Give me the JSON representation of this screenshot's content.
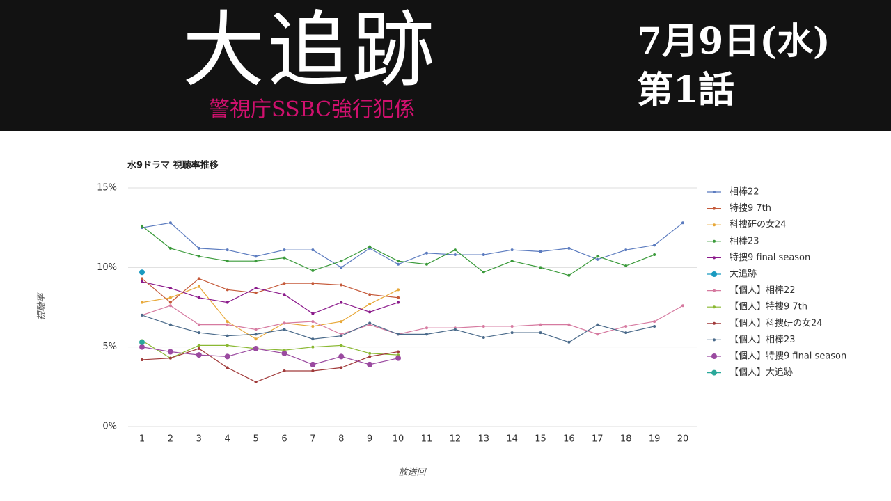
{
  "header": {
    "title": "大追跡",
    "subtitle": "警視庁SSBC強行犯係",
    "date": "7月9日(水)",
    "episode": "第1話"
  },
  "chart_data": {
    "type": "line",
    "title": "水9ドラマ 視聴率推移",
    "x_label": "放送回",
    "y_label": "視聴率",
    "x": [
      1,
      2,
      3,
      4,
      5,
      6,
      7,
      8,
      9,
      10,
      11,
      12,
      13,
      14,
      15,
      16,
      17,
      18,
      19,
      20
    ],
    "xlim": [
      1,
      20
    ],
    "xticks": [
      1,
      2,
      3,
      4,
      5,
      6,
      7,
      8,
      9,
      10,
      11,
      12,
      13,
      14,
      15,
      16,
      17,
      18,
      19,
      20
    ],
    "ylim": [
      0,
      15
    ],
    "yticks": [
      {
        "value": 0,
        "label": "0%"
      },
      {
        "value": 5,
        "label": "5%"
      },
      {
        "value": 10,
        "label": "10%"
      },
      {
        "value": 15,
        "label": "15%"
      }
    ],
    "grid": true,
    "legend": "right",
    "series": [
      {
        "name": "相棒22",
        "color": "#5b7bbf",
        "values": [
          12.5,
          12.8,
          11.2,
          11.1,
          10.7,
          11.1,
          11.1,
          10.0,
          11.2,
          10.2,
          10.9,
          10.8,
          10.8,
          11.1,
          11.0,
          11.2,
          10.5,
          11.1,
          11.4,
          12.8
        ]
      },
      {
        "name": "特捜9 7th",
        "color": "#c55a3a",
        "values": [
          9.3,
          7.8,
          9.3,
          8.6,
          8.4,
          9.0,
          9.0,
          8.9,
          8.3,
          8.1,
          null,
          null,
          null,
          null,
          null,
          null,
          null,
          null,
          null,
          null
        ]
      },
      {
        "name": "科捜研の女24",
        "color": "#e8a838",
        "values": [
          7.8,
          8.1,
          8.8,
          6.6,
          5.5,
          6.5,
          6.3,
          6.6,
          7.7,
          8.6,
          null,
          null,
          null,
          null,
          null,
          null,
          null,
          null,
          null,
          null
        ]
      },
      {
        "name": "相棒23",
        "color": "#3a9a3a",
        "values": [
          12.6,
          11.2,
          10.7,
          10.4,
          10.4,
          10.6,
          9.8,
          10.4,
          11.3,
          10.4,
          10.2,
          11.1,
          9.7,
          10.4,
          10.0,
          9.5,
          10.7,
          10.1,
          10.8,
          null
        ]
      },
      {
        "name": "特捜9 final season",
        "color": "#8b1a8b",
        "values": [
          9.1,
          8.7,
          8.1,
          7.8,
          8.7,
          8.3,
          7.1,
          7.8,
          7.2,
          7.8,
          null,
          null,
          null,
          null,
          null,
          null,
          null,
          null,
          null,
          null
        ]
      },
      {
        "name": "大追跡",
        "color": "#1a9ac0",
        "values": [
          9.7,
          null,
          null,
          null,
          null,
          null,
          null,
          null,
          null,
          null,
          null,
          null,
          null,
          null,
          null,
          null,
          null,
          null,
          null,
          null
        ]
      },
      {
        "name": "【個人】相棒22",
        "color": "#d67aa0",
        "values": [
          7.0,
          7.6,
          6.4,
          6.4,
          6.1,
          6.5,
          6.6,
          5.8,
          6.4,
          5.8,
          6.2,
          6.2,
          6.3,
          6.3,
          6.4,
          6.4,
          5.8,
          6.3,
          6.6,
          7.6
        ]
      },
      {
        "name": "【個人】特捜9 7th",
        "color": "#8ab832",
        "values": [
          5.4,
          4.3,
          5.1,
          5.1,
          4.9,
          4.8,
          5.0,
          5.1,
          4.6,
          4.5,
          null,
          null,
          null,
          null,
          null,
          null,
          null,
          null,
          null,
          null
        ]
      },
      {
        "name": "【個人】科捜研の女24",
        "color": "#a03a3a",
        "values": [
          4.2,
          4.3,
          4.9,
          3.7,
          2.8,
          3.5,
          3.5,
          3.7,
          4.4,
          4.7,
          null,
          null,
          null,
          null,
          null,
          null,
          null,
          null,
          null,
          null
        ]
      },
      {
        "name": "【個人】相棒23",
        "color": "#4a6a8a",
        "values": [
          7.0,
          6.4,
          5.9,
          5.7,
          5.8,
          6.1,
          5.5,
          5.7,
          6.5,
          5.8,
          5.8,
          6.1,
          5.6,
          5.9,
          5.9,
          5.3,
          6.4,
          5.9,
          6.3,
          null
        ]
      },
      {
        "name": "【個人】特捜9 final season",
        "color": "#9a4aa0",
        "values": [
          5.0,
          4.7,
          4.5,
          4.4,
          4.9,
          4.6,
          3.9,
          4.4,
          3.9,
          4.3,
          null,
          null,
          null,
          null,
          null,
          null,
          null,
          null,
          null,
          null
        ]
      },
      {
        "name": "【個人】大追跡",
        "color": "#2aa89a",
        "values": [
          5.3,
          null,
          null,
          null,
          null,
          null,
          null,
          null,
          null,
          null,
          null,
          null,
          null,
          null,
          null,
          null,
          null,
          null,
          null,
          null
        ]
      }
    ]
  }
}
